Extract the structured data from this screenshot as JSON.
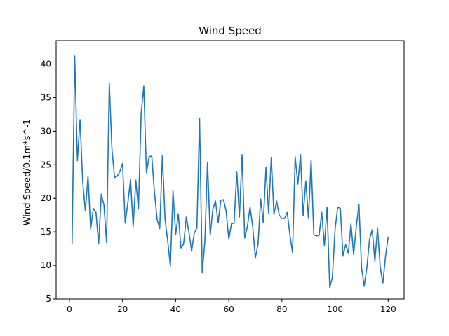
{
  "chart_data": {
    "type": "line",
    "title": "Wind Speed",
    "xlabel": "",
    "ylabel": "Wind Speed/0.1m*s^-1",
    "xlim": [
      -5,
      126
    ],
    "ylim": [
      5,
      43.5
    ],
    "xticks": [
      0,
      20,
      40,
      60,
      80,
      100,
      120
    ],
    "yticks": [
      5,
      10,
      15,
      20,
      25,
      30,
      35,
      40
    ],
    "grid": false,
    "legend": "none",
    "color": "#1f77b4",
    "x": [
      1,
      2,
      3,
      4,
      5,
      6,
      7,
      8,
      9,
      10,
      11,
      12,
      13,
      14,
      15,
      16,
      17,
      18,
      19,
      20,
      21,
      22,
      23,
      24,
      25,
      26,
      27,
      28,
      29,
      30,
      31,
      32,
      33,
      34,
      35,
      36,
      37,
      38,
      39,
      40,
      41,
      42,
      43,
      44,
      45,
      46,
      47,
      48,
      49,
      50,
      51,
      52,
      53,
      54,
      55,
      56,
      57,
      58,
      59,
      60,
      61,
      62,
      63,
      64,
      65,
      66,
      67,
      68,
      69,
      70,
      71,
      72,
      73,
      74,
      75,
      76,
      77,
      78,
      79,
      80,
      81,
      82,
      83,
      84,
      85,
      86,
      87,
      88,
      89,
      90,
      91,
      92,
      93,
      94,
      95,
      96,
      97,
      98,
      99,
      100,
      101,
      102,
      103,
      104,
      105,
      106,
      107,
      108,
      109,
      110,
      111,
      112,
      113,
      114,
      115,
      116,
      117,
      118,
      119,
      120
    ],
    "values": [
      13.3,
      41.2,
      25.6,
      31.7,
      22.5,
      18.1,
      23.3,
      15.4,
      18.5,
      17.9,
      13.2,
      20.6,
      19.0,
      13.4,
      37.2,
      27.4,
      23.1,
      23.3,
      24.0,
      25.2,
      16.3,
      19.3,
      22.8,
      15.8,
      22.7,
      18.4,
      32.6,
      36.7,
      23.8,
      26.2,
      26.3,
      21.0,
      16.9,
      15.5,
      26.4,
      16.9,
      13.7,
      9.9,
      21.1,
      14.6,
      17.7,
      12.5,
      13.2,
      17.2,
      15.0,
      12.1,
      14.8,
      15.6,
      31.9,
      8.9,
      13.6,
      25.4,
      14.5,
      18.4,
      19.6,
      16.4,
      19.7,
      19.8,
      18.1,
      13.9,
      16.2,
      16.3,
      24.0,
      17.2,
      26.5,
      14.1,
      15.8,
      18.7,
      15.8,
      11.1,
      13.1,
      19.9,
      16.4,
      24.6,
      17.8,
      26.1,
      17.6,
      19.6,
      17.5,
      17.0,
      17.0,
      17.9,
      14.6,
      11.9,
      26.2,
      22.1,
      26.5,
      17.4,
      22.6,
      17.0,
      25.7,
      14.6,
      14.4,
      14.5,
      17.9,
      12.9,
      18.7,
      6.7,
      8.2,
      15.3,
      18.7,
      18.5,
      11.4,
      13.1,
      11.8,
      16.2,
      11.6,
      15.8,
      19.1,
      9.6,
      6.9,
      9.7,
      13.9,
      15.3,
      10.6,
      15.6,
      9.8,
      7.3,
      11.3,
      14.2
    ]
  }
}
